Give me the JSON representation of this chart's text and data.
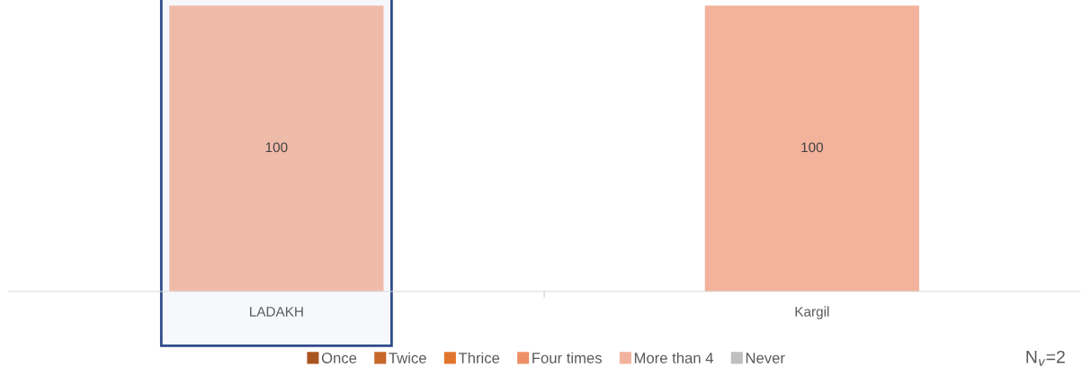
{
  "chart_data": {
    "type": "bar",
    "stacked": true,
    "data_labels": true,
    "legend": "bottom",
    "grid": false,
    "categories": [
      "LADAKH",
      "Kargil"
    ],
    "series": [
      {
        "name": "Once",
        "color": "#a9541f",
        "values": [
          null,
          null
        ]
      },
      {
        "name": "Twice",
        "color": "#c8672a",
        "values": [
          null,
          null
        ]
      },
      {
        "name": "Thrice",
        "color": "#e2752e",
        "values": [
          null,
          null
        ]
      },
      {
        "name": "Four times",
        "color": "#ef8f68",
        "values": [
          null,
          null
        ]
      },
      {
        "name": "More than 4",
        "color": "#f2b29b",
        "colors": [
          "#efbba9",
          "#f2b29b"
        ],
        "values": [
          100,
          100
        ]
      },
      {
        "name": "Never",
        "color": "#bfbfbf",
        "values": [
          null,
          null
        ]
      }
    ],
    "annotations": [
      "N$_{v}$=2"
    ]
  }
}
